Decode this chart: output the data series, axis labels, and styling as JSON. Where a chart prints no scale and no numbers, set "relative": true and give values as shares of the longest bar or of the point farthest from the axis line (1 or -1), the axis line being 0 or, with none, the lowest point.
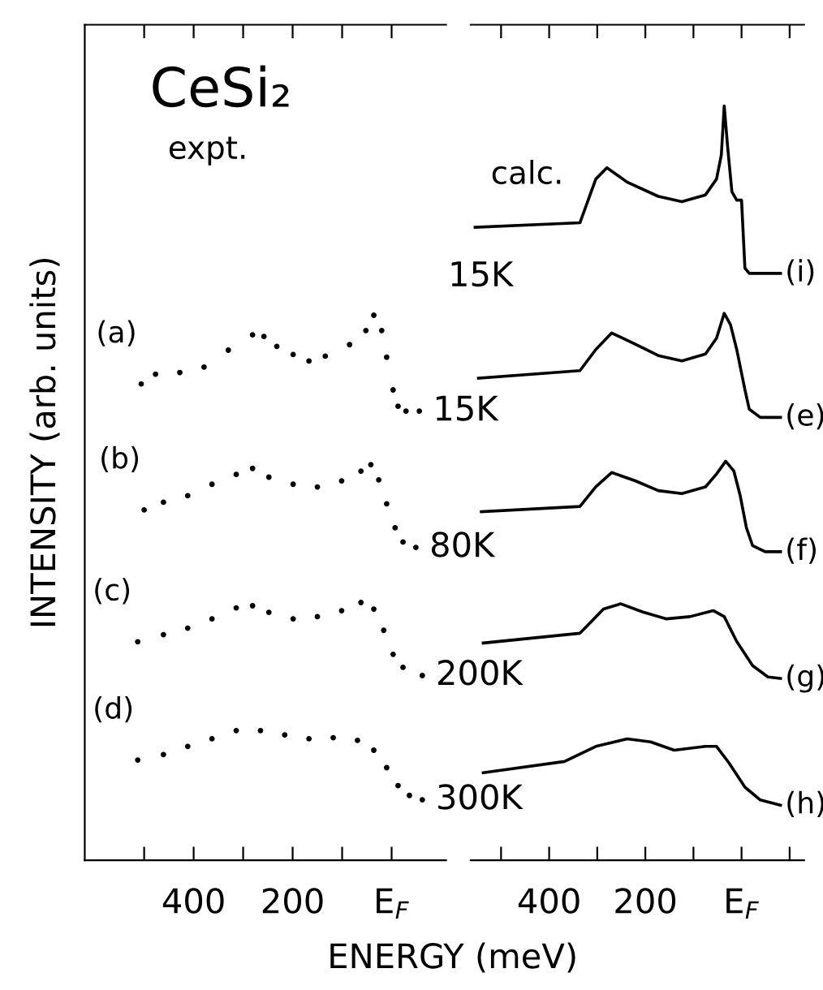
{
  "chart_data": [
    {
      "type": "scatter",
      "title": "CeSi₂",
      "ylabel": "INTENSITY (arb. units)",
      "xlabel": "ENERGY (meV)",
      "relative": true,
      "marker": "circle",
      "grid": false,
      "legend": false,
      "tick_labels": "x",
      "xlim": [
        620,
        -110
      ],
      "xticks": [
        {
          "value": 500,
          "label": null
        },
        400,
        {
          "value": 300,
          "label": null
        },
        200,
        {
          "value": 100,
          "label": null
        },
        {
          "value": 0,
          "label": "E$_{F}$"
        }
      ],
      "annotations": [
        "expt.",
        {
          "text": "15K",
          "x": -56,
          "y": 0.824
        },
        {
          "text": "80K",
          "x": -49,
          "y": 0.574
        },
        {
          "text": "200K",
          "x": -62,
          "y": 0.339
        },
        {
          "text": "300K",
          "x": -62,
          "y": 0.111
        }
      ],
      "series": [
        {
          "name": "(a)",
          "color": "#000000",
          "x": [
            506,
            477,
            428,
            379,
            330,
            281,
            258,
            232,
            199,
            167,
            134,
            85,
            52,
            36,
            20,
            10,
            -3,
            -13,
            -29,
            -56
          ],
          "values": [
            0.874,
            0.892,
            0.895,
            0.905,
            0.936,
            0.964,
            0.961,
            0.943,
            0.928,
            0.916,
            0.925,
            0.946,
            0.972,
            1.0,
            0.972,
            0.923,
            0.863,
            0.833,
            0.824,
            0.824
          ]
        },
        {
          "name": "(b)",
          "color": "#000000",
          "x": [
            500,
            461,
            412,
            363,
            314,
            281,
            248,
            199,
            150,
            101,
            62,
            42,
            26,
            10,
            -7,
            -23,
            -49
          ],
          "values": [
            0.643,
            0.657,
            0.669,
            0.69,
            0.708,
            0.719,
            0.703,
            0.69,
            0.685,
            0.696,
            0.714,
            0.726,
            0.698,
            0.654,
            0.61,
            0.584,
            0.574
          ]
        },
        {
          "name": "(c)",
          "color": "#000000",
          "x": [
            513,
            461,
            412,
            363,
            314,
            281,
            248,
            199,
            150,
            101,
            62,
            36,
            16,
            -3,
            -23,
            -62
          ],
          "values": [
            0.401,
            0.414,
            0.426,
            0.443,
            0.463,
            0.467,
            0.455,
            0.443,
            0.447,
            0.458,
            0.473,
            0.461,
            0.422,
            0.378,
            0.354,
            0.339
          ]
        },
        {
          "name": "(d)",
          "color": "#000000",
          "x": [
            513,
            461,
            412,
            363,
            314,
            265,
            216,
            167,
            118,
            69,
            36,
            10,
            -13,
            -36,
            -62
          ],
          "values": [
            0.184,
            0.194,
            0.209,
            0.223,
            0.238,
            0.238,
            0.23,
            0.223,
            0.225,
            0.22,
            0.202,
            0.17,
            0.137,
            0.119,
            0.111
          ]
        }
      ]
    },
    {
      "type": "line",
      "relative": true,
      "grid": false,
      "legend": false,
      "tick_labels": "x",
      "line_style": "solid",
      "marker": "none",
      "xlim": [
        563,
        -130
      ],
      "xticks": [
        {
          "value": 500,
          "label": null
        },
        400,
        {
          "value": 300,
          "label": null
        },
        200,
        {
          "value": 100,
          "label": null
        },
        {
          "value": 0,
          "label": "E$_{F}$"
        },
        {
          "value": -100,
          "label": null
        }
      ],
      "annotations": [
        "calc.",
        {
          "text": "15K",
          "x": 554,
          "y": 0.839
        }
      ],
      "series": [
        {
          "name": "(i)",
          "color": "#000000",
          "x": [
            554,
            336,
            303,
            280,
            238,
            173,
            124,
            75,
            52,
            42,
            36,
            29,
            20,
            10,
            0,
            -7,
            -16,
            -81
          ],
          "values": [
            0.839,
            0.845,
            0.903,
            0.918,
            0.899,
            0.88,
            0.873,
            0.882,
            0.903,
            0.935,
            1.0,
            0.946,
            0.886,
            0.875,
            0.875,
            0.785,
            0.778,
            0.778
          ]
        },
        {
          "name": "(e)",
          "color": "#000000",
          "x": [
            547,
            336,
            303,
            270,
            221,
            173,
            124,
            75,
            52,
            36,
            23,
            10,
            -7,
            -16,
            -39,
            -81
          ],
          "values": [
            0.639,
            0.649,
            0.677,
            0.699,
            0.684,
            0.669,
            0.662,
            0.671,
            0.692,
            0.725,
            0.71,
            0.677,
            0.624,
            0.598,
            0.587,
            0.587
          ]
        },
        {
          "name": "(f)",
          "color": "#000000",
          "x": [
            541,
            336,
            303,
            270,
            221,
            173,
            124,
            75,
            52,
            33,
            16,
            3,
            -10,
            -23,
            -49,
            -81
          ],
          "values": [
            0.462,
            0.469,
            0.495,
            0.514,
            0.503,
            0.49,
            0.486,
            0.495,
            0.512,
            0.529,
            0.516,
            0.484,
            0.441,
            0.417,
            0.409,
            0.409
          ]
        },
        {
          "name": "(g)",
          "color": "#000000",
          "x": [
            537,
            336,
            287,
            251,
            205,
            156,
            107,
            59,
            36,
            10,
            -23,
            -55,
            -81
          ],
          "values": [
            0.288,
            0.301,
            0.333,
            0.34,
            0.329,
            0.32,
            0.323,
            0.331,
            0.323,
            0.29,
            0.258,
            0.243,
            0.241
          ]
        },
        {
          "name": "(h)",
          "color": "#000000",
          "x": [
            537,
            368,
            303,
            238,
            189,
            140,
            75,
            52,
            26,
            -7,
            -39,
            -81
          ],
          "values": [
            0.116,
            0.131,
            0.151,
            0.161,
            0.157,
            0.146,
            0.151,
            0.151,
            0.129,
            0.097,
            0.08,
            0.073
          ]
        }
      ]
    }
  ]
}
